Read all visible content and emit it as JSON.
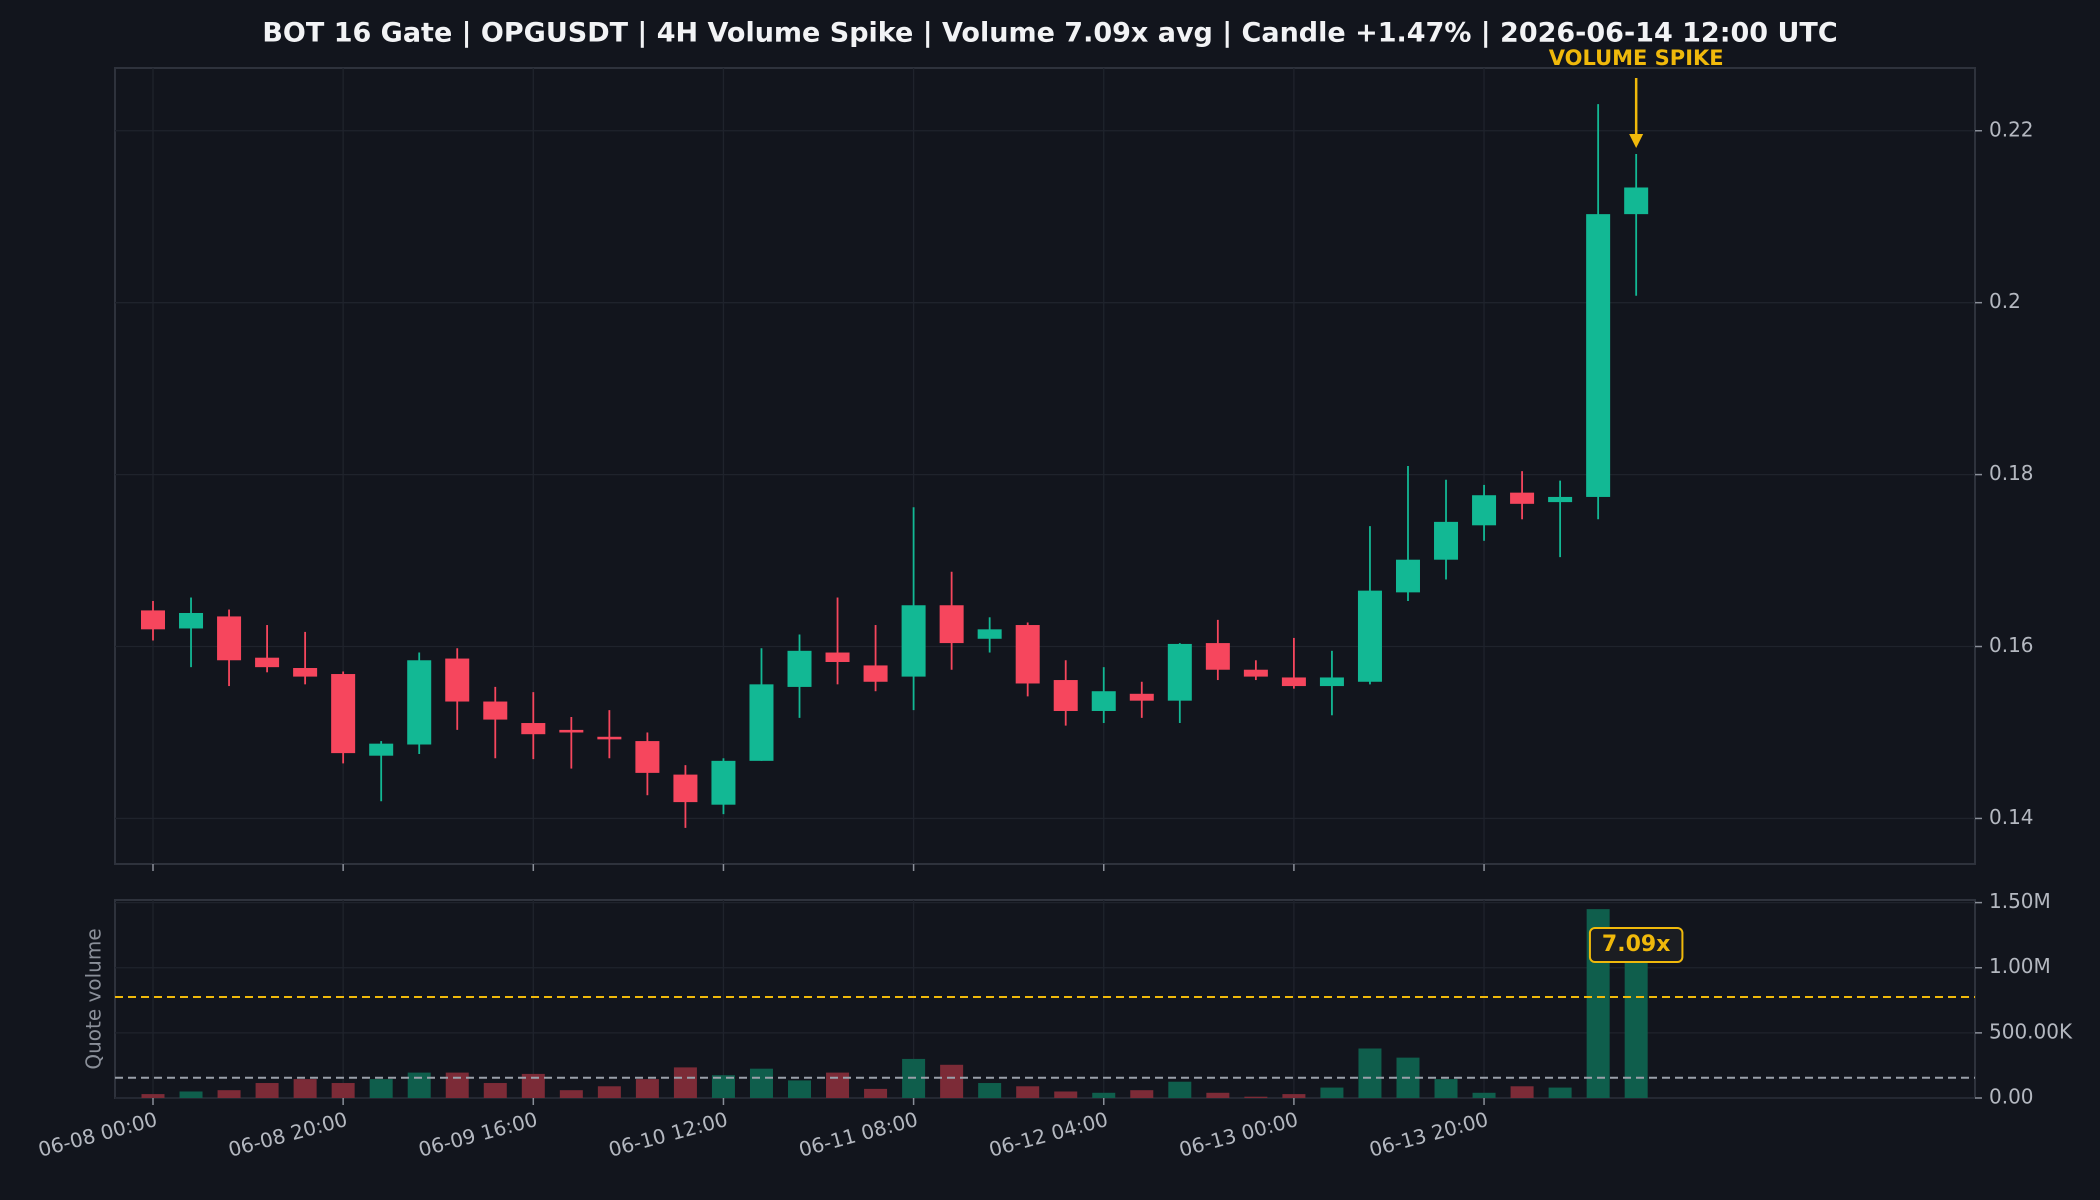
{
  "chart_data": [
    {
      "type": "candlestick",
      "title": "BOT 16 Gate | OPGUSDT | 4H Volume Spike | Volume 7.09x avg | Candle +1.47% | 2026-06-14 12:00 UTC",
      "open": [
        0.1642,
        0.1621,
        0.1635,
        0.1587,
        0.1575,
        0.1568,
        0.1473,
        0.1486,
        0.1586,
        0.1536,
        0.1511,
        0.1503,
        0.1495,
        0.149,
        0.1451,
        0.1416,
        0.1467,
        0.1553,
        0.1593,
        0.1578,
        0.1565,
        0.1648,
        0.1609,
        0.1625,
        0.1561,
        0.1525,
        0.1545,
        0.1537,
        0.1604,
        0.1573,
        0.1564,
        0.1554,
        0.1559,
        0.1663,
        0.1701,
        0.1741,
        0.1779,
        0.1768,
        0.1774,
        0.2103
      ],
      "high": [
        0.1653,
        0.1657,
        0.1643,
        0.1625,
        0.1617,
        0.1571,
        0.149,
        0.1593,
        0.1598,
        0.1553,
        0.1547,
        0.1518,
        0.1526,
        0.15,
        0.1462,
        0.147,
        0.1598,
        0.1614,
        0.1657,
        0.1625,
        0.1762,
        0.1687,
        0.1634,
        0.1628,
        0.1584,
        0.1576,
        0.1559,
        0.1604,
        0.1631,
        0.1584,
        0.161,
        0.1595,
        0.174,
        0.181,
        0.1794,
        0.1788,
        0.1804,
        0.1793,
        0.2231,
        0.2173
      ],
      "low": [
        0.1607,
        0.1576,
        0.1554,
        0.157,
        0.1556,
        0.1464,
        0.142,
        0.1475,
        0.1503,
        0.147,
        0.1469,
        0.1458,
        0.147,
        0.1427,
        0.1389,
        0.1405,
        0.1467,
        0.1517,
        0.1556,
        0.1548,
        0.1526,
        0.1573,
        0.1593,
        0.1542,
        0.1508,
        0.1511,
        0.1517,
        0.1511,
        0.1561,
        0.1561,
        0.1551,
        0.152,
        0.1556,
        0.1653,
        0.1678,
        0.1723,
        0.1748,
        0.1704,
        0.1748,
        0.2008
      ],
      "close": [
        0.162,
        0.1639,
        0.1584,
        0.1576,
        0.1565,
        0.1476,
        0.1487,
        0.1584,
        0.1536,
        0.1515,
        0.1498,
        0.15,
        0.1492,
        0.1453,
        0.1419,
        0.1467,
        0.1556,
        0.1595,
        0.1582,
        0.1559,
        0.1648,
        0.1604,
        0.162,
        0.1557,
        0.1525,
        0.1548,
        0.1537,
        0.1603,
        0.1573,
        0.1565,
        0.1554,
        0.1564,
        0.1665,
        0.1701,
        0.1745,
        0.1776,
        0.1766,
        0.1774,
        0.2103,
        0.2134
      ],
      "up_color": "#12b894",
      "down_color": "#f6465d",
      "ylim": [
        0.1347,
        0.2273
      ],
      "yticks": [
        0.14,
        0.16,
        0.18,
        0.2,
        0.22
      ],
      "grid": true,
      "annotation": "VOLUME SPIKE",
      "annotation_color": "#f0b90b"
    },
    {
      "type": "bar",
      "ylabel": "Quote volume",
      "categories": [
        "06-08 00:00",
        null,
        null,
        null,
        null,
        "06-08 20:00",
        null,
        null,
        null,
        null,
        "06-09 16:00",
        null,
        null,
        null,
        null,
        "06-10 12:00",
        null,
        null,
        null,
        null,
        "06-11 08:00",
        null,
        null,
        null,
        null,
        "06-12 04:00",
        null,
        null,
        null,
        null,
        "06-13 00:00",
        null,
        null,
        null,
        null,
        "06-13 20:00",
        null,
        null,
        null,
        null
      ],
      "values": [
        30000,
        50000,
        60000,
        115000,
        145000,
        115000,
        145000,
        195000,
        195000,
        115000,
        185000,
        60000,
        90000,
        145000,
        235000,
        175000,
        225000,
        135000,
        195000,
        70000,
        300000,
        255000,
        115000,
        90000,
        50000,
        40000,
        60000,
        125000,
        40000,
        10000,
        30000,
        80000,
        380000,
        310000,
        145000,
        40000,
        90000,
        80000,
        1450000,
        1099000
      ],
      "up_color": "#0f5e4c",
      "down_color": "#7c2b37",
      "ylim": [
        0,
        1520000
      ],
      "yticks": [
        {
          "value": 0,
          "label": "0.00"
        },
        {
          "value": 500000,
          "label": "500.00K"
        },
        {
          "value": 1000000,
          "label": "1.00M"
        },
        {
          "value": 1500000,
          "label": "1.50M"
        }
      ],
      "grid": true,
      "hlines": [
        {
          "value": 775000,
          "color": "#f0b90b"
        },
        {
          "value": 155000,
          "color": "#9aa0aa"
        }
      ],
      "annotation": "7.09x",
      "annotation_color": "#f0b90b"
    }
  ]
}
